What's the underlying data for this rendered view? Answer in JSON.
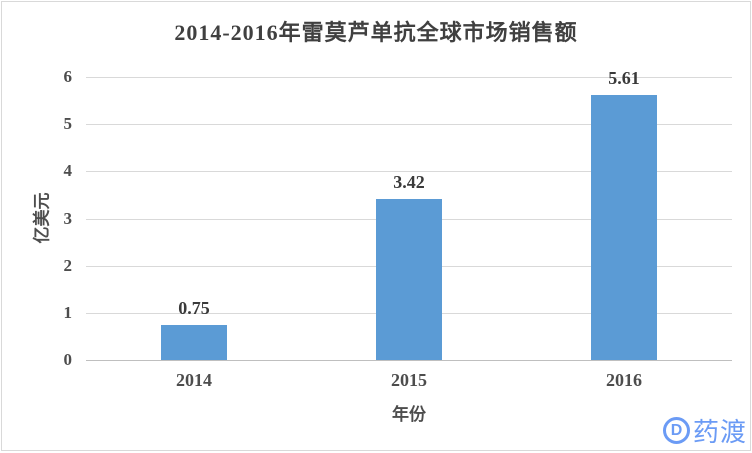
{
  "title": "2014-2016年雷莫芦单抗全球市场销售额",
  "watermark": {
    "logo_letter": "D",
    "text": "药渡",
    "color": "#6b9bf5"
  },
  "chart_data": {
    "type": "bar",
    "title": "2014-2016年雷莫芦单抗全球市场销售额",
    "categories": [
      "2014",
      "2015",
      "2016"
    ],
    "values": [
      0.75,
      3.42,
      5.61
    ],
    "data_labels": [
      "0.75",
      "3.42",
      "5.61"
    ],
    "xlabel": "年份",
    "ylabel": "亿美元",
    "ylim": [
      0,
      6
    ],
    "yticks": [
      0,
      1,
      2,
      3,
      4,
      5,
      6
    ],
    "grid": true,
    "legend": "none",
    "bar_color": "#5b9bd5",
    "gridline_color": "#d9d9d9",
    "axis_line_color": "#bfbfbf",
    "text_color": "#4d4d4d"
  }
}
